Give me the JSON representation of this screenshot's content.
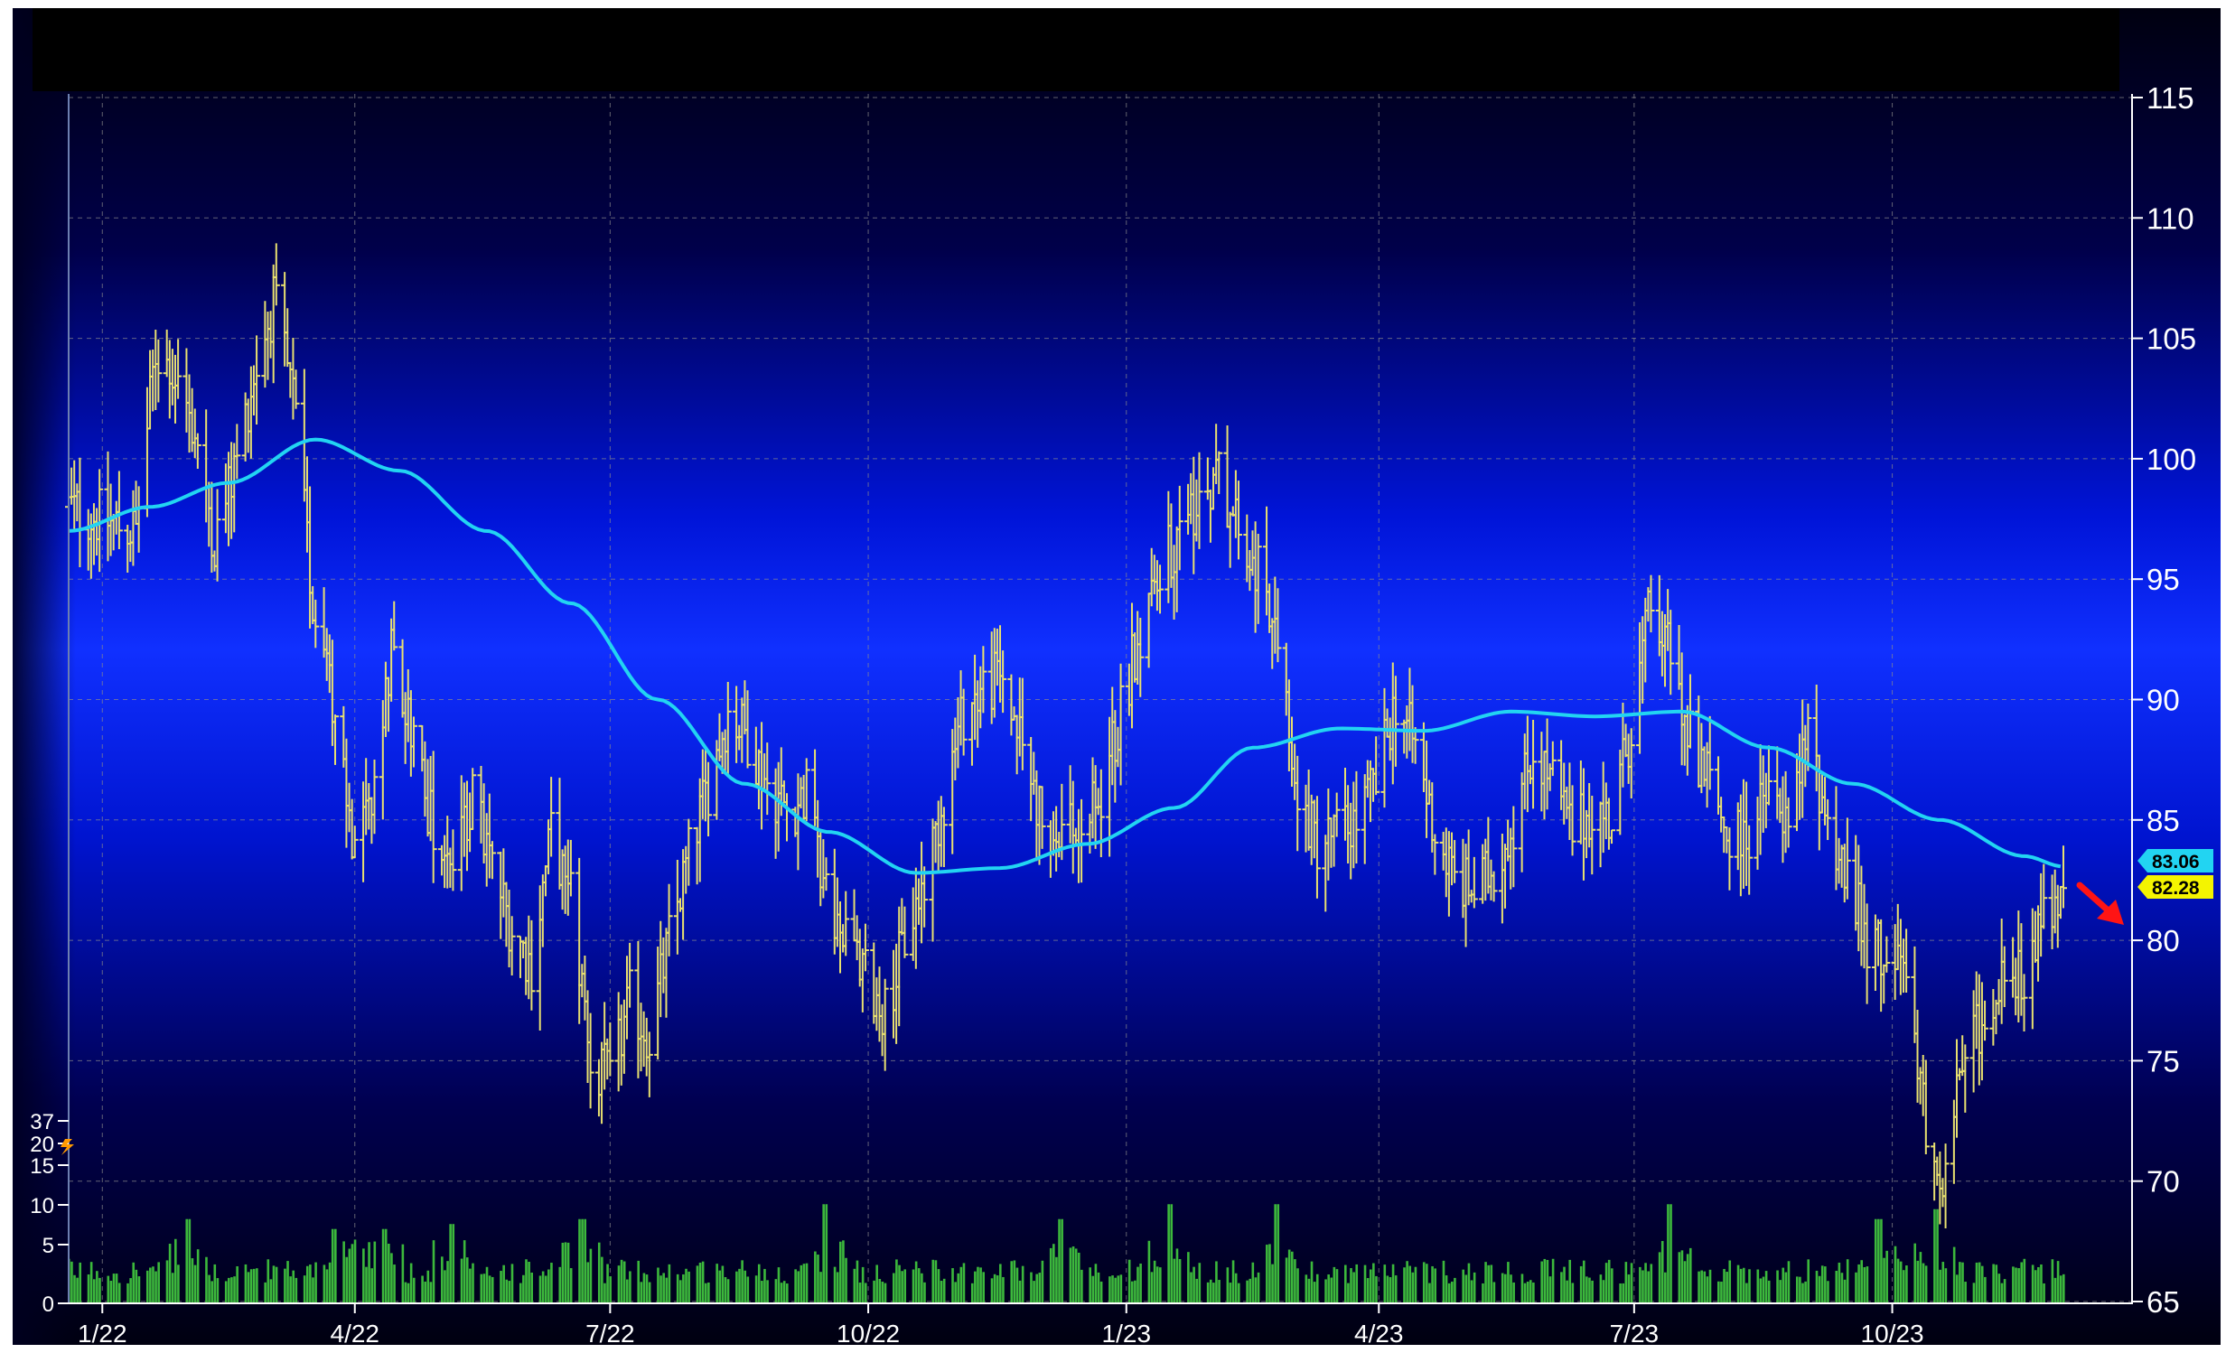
{
  "chart_data": {
    "type": "ohlc",
    "price_axis": {
      "min": 65,
      "max": 115,
      "ticks": [
        "115",
        "110",
        "105",
        "100",
        "95",
        "90",
        "85",
        "80",
        "75",
        "70",
        "65"
      ]
    },
    "volume_axis": {
      "min": 0,
      "max": 37,
      "ticks": [
        "37",
        "20",
        "15",
        "10",
        "5",
        "0"
      ]
    },
    "x_labels": [
      "1/22",
      "4/22",
      "7/22",
      "10/22",
      "1/23",
      "4/23",
      "7/23",
      "10/23"
    ],
    "x_range": [
      "2022-01-03",
      "2023-12-15"
    ],
    "price_anchors": [
      [
        "2022-01-03",
        98
      ],
      [
        "2022-01-14",
        97.5
      ],
      [
        "2022-01-27",
        97
      ],
      [
        "2022-02-03",
        104.5
      ],
      [
        "2022-02-10",
        103.5
      ],
      [
        "2022-02-18",
        101
      ],
      [
        "2022-02-24",
        96.5
      ],
      [
        "2022-03-03",
        99.5
      ],
      [
        "2022-03-10",
        103.5
      ],
      [
        "2022-03-17",
        106.5
      ],
      [
        "2022-03-24",
        102.5
      ],
      [
        "2022-03-31",
        94
      ],
      [
        "2022-04-08",
        89.5
      ],
      [
        "2022-04-14",
        84
      ],
      [
        "2022-04-22",
        85.5
      ],
      [
        "2022-04-28",
        92.5
      ],
      [
        "2022-05-06",
        88.5
      ],
      [
        "2022-05-13",
        84.5
      ],
      [
        "2022-05-20",
        83
      ],
      [
        "2022-05-27",
        86
      ],
      [
        "2022-06-03",
        83
      ],
      [
        "2022-06-10",
        80.5
      ],
      [
        "2022-06-17",
        79
      ],
      [
        "2022-06-24",
        84.5
      ],
      [
        "2022-07-01",
        81.5
      ],
      [
        "2022-07-08",
        75.5
      ],
      [
        "2022-07-15",
        74
      ],
      [
        "2022-07-22",
        77.5
      ],
      [
        "2022-07-29",
        76
      ],
      [
        "2022-08-05",
        80
      ],
      [
        "2022-08-12",
        83.5
      ],
      [
        "2022-08-19",
        86.5
      ],
      [
        "2022-08-26",
        89.5
      ],
      [
        "2022-09-02",
        88.5
      ],
      [
        "2022-09-09",
        86.5
      ],
      [
        "2022-09-16",
        85.5
      ],
      [
        "2022-09-23",
        86
      ],
      [
        "2022-09-30",
        81.5
      ],
      [
        "2022-10-07",
        80
      ],
      [
        "2022-10-14",
        78.5
      ],
      [
        "2022-10-21",
        77
      ],
      [
        "2022-10-28",
        80
      ],
      [
        "2022-11-04",
        82.5
      ],
      [
        "2022-11-11",
        86
      ],
      [
        "2022-11-18",
        89.5
      ],
      [
        "2022-11-25",
        90.5
      ],
      [
        "2022-12-02",
        91
      ],
      [
        "2022-12-09",
        88
      ],
      [
        "2022-12-16",
        85
      ],
      [
        "2022-12-23",
        84.5
      ],
      [
        "2022-12-30",
        84.5
      ],
      [
        "2023-01-06",
        86
      ],
      [
        "2023-01-13",
        89.5
      ],
      [
        "2023-01-20",
        93
      ],
      [
        "2023-01-27",
        95.5
      ],
      [
        "2023-02-03",
        97
      ],
      [
        "2023-02-10",
        98.5
      ],
      [
        "2023-02-17",
        99.5
      ],
      [
        "2023-02-24",
        97
      ],
      [
        "2023-03-03",
        95.5
      ],
      [
        "2023-03-10",
        91.5
      ],
      [
        "2023-03-17",
        86
      ],
      [
        "2023-03-24",
        84
      ],
      [
        "2023-03-31",
        84.5
      ],
      [
        "2023-04-07",
        85
      ],
      [
        "2023-04-14",
        86.5
      ],
      [
        "2023-04-21",
        90
      ],
      [
        "2023-04-28",
        88
      ],
      [
        "2023-05-05",
        84.5
      ],
      [
        "2023-05-12",
        82.5
      ],
      [
        "2023-05-19",
        82
      ],
      [
        "2023-05-26",
        83
      ],
      [
        "2023-06-02",
        85
      ],
      [
        "2023-06-09",
        88
      ],
      [
        "2023-06-16",
        86.5
      ],
      [
        "2023-06-23",
        84.5
      ],
      [
        "2023-06-30",
        85.5
      ],
      [
        "2023-07-07",
        85
      ],
      [
        "2023-07-14",
        89
      ],
      [
        "2023-07-21",
        94
      ],
      [
        "2023-07-28",
        92.5
      ],
      [
        "2023-08-04",
        88.5
      ],
      [
        "2023-08-11",
        86.5
      ],
      [
        "2023-08-18",
        84
      ],
      [
        "2023-08-25",
        84.5
      ],
      [
        "2023-09-01",
        86
      ],
      [
        "2023-09-08",
        84.5
      ],
      [
        "2023-09-15",
        88.5
      ],
      [
        "2023-09-22",
        85
      ],
      [
        "2023-09-29",
        82.5
      ],
      [
        "2023-10-06",
        80
      ],
      [
        "2023-10-13",
        79.5
      ],
      [
        "2023-10-20",
        78.5
      ],
      [
        "2023-10-27",
        72.5
      ],
      [
        "2023-11-03",
        70
      ],
      [
        "2023-11-10",
        75.5
      ],
      [
        "2023-11-17",
        76.5
      ],
      [
        "2023-11-24",
        79.5
      ],
      [
        "2023-12-01",
        78.5
      ],
      [
        "2023-12-08",
        80.5
      ],
      [
        "2023-12-15",
        82.3
      ]
    ],
    "moving_average_anchors": [
      [
        "2022-01-03",
        97
      ],
      [
        "2022-02-01",
        98
      ],
      [
        "2022-03-01",
        99
      ],
      [
        "2022-04-01",
        100.8
      ],
      [
        "2022-05-01",
        99.5
      ],
      [
        "2022-06-01",
        97
      ],
      [
        "2022-07-01",
        94
      ],
      [
        "2022-08-01",
        90
      ],
      [
        "2022-09-01",
        86.5
      ],
      [
        "2022-10-01",
        84.5
      ],
      [
        "2022-11-01",
        82.8
      ],
      [
        "2022-12-01",
        83
      ],
      [
        "2023-01-01",
        84
      ],
      [
        "2023-02-01",
        85.5
      ],
      [
        "2023-03-01",
        88
      ],
      [
        "2023-04-01",
        88.8
      ],
      [
        "2023-05-01",
        88.7
      ],
      [
        "2023-06-01",
        89.5
      ],
      [
        "2023-07-01",
        89.3
      ],
      [
        "2023-08-01",
        89.5
      ],
      [
        "2023-09-01",
        88
      ],
      [
        "2023-10-01",
        86.5
      ],
      [
        "2023-11-01",
        85
      ],
      [
        "2023-12-01",
        83.5
      ],
      [
        "2023-12-15",
        83.06
      ]
    ],
    "volume_spikes": [
      [
        "2022-02-14",
        17
      ],
      [
        "2022-04-08",
        15
      ],
      [
        "2022-04-25",
        15
      ],
      [
        "2022-05-20",
        16
      ],
      [
        "2022-07-05",
        17
      ],
      [
        "2022-09-30",
        20
      ],
      [
        "2022-12-23",
        17
      ],
      [
        "2023-01-30",
        20
      ],
      [
        "2023-03-10",
        20
      ],
      [
        "2023-07-28",
        20
      ],
      [
        "2023-10-10",
        17
      ],
      [
        "2023-10-30",
        19
      ]
    ],
    "markers": {
      "moving_average_last": "83.06",
      "last_price": "82.28"
    },
    "colors": {
      "price_bars": "#e8e070",
      "moving_average": "#22d4f2",
      "volume_bars": "#3cb83c",
      "ma_badge": "#22d4f2",
      "price_badge": "#f4f400",
      "arrow": "#ff1414"
    }
  }
}
